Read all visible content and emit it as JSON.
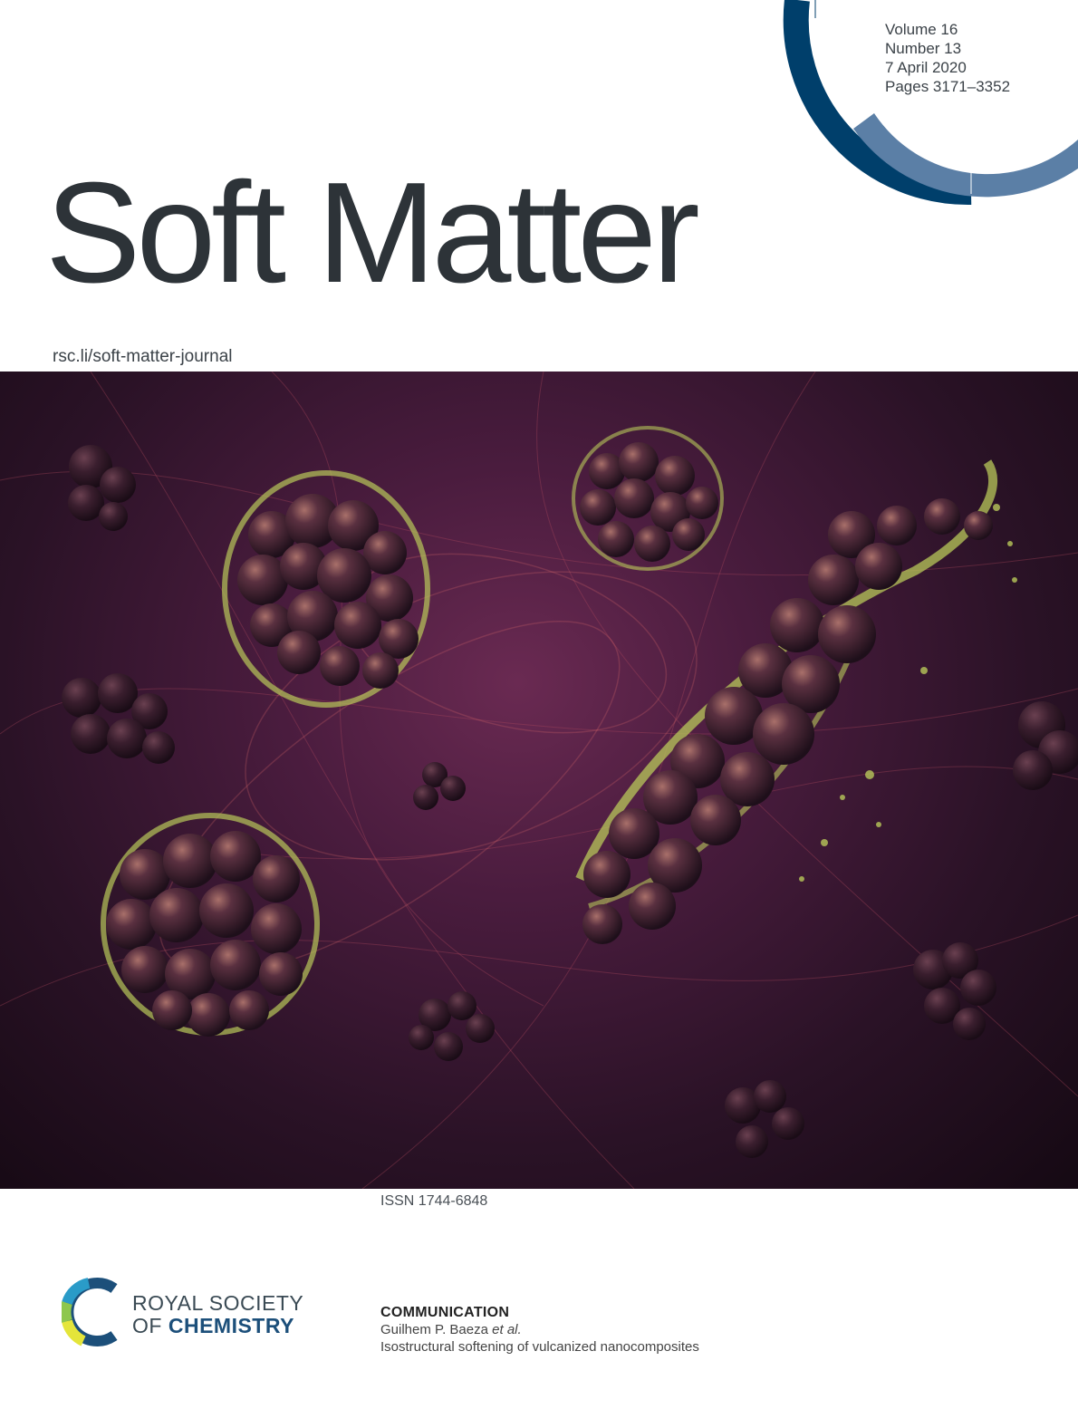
{
  "issue": {
    "volume": "Volume 16",
    "number": "Number 13",
    "date": "7 April 2020",
    "pages": "Pages 3171–3352"
  },
  "journal": {
    "title": "Soft Matter",
    "url": "rsc.li/soft-matter-journal",
    "issn": "ISSN 1744-6848"
  },
  "publisher": {
    "line1": "ROYAL SOCIETY",
    "line2_prefix": "OF ",
    "line2_bold": "CHEMISTRY"
  },
  "article": {
    "type": "COMMUNICATION",
    "authors_main": "Guilhem P. Baeza ",
    "authors_etal": "et al.",
    "title": "Isostructural softening of vulcanized nanocomposites"
  },
  "colors": {
    "title": "#2d3338",
    "arc_dark": "#003f6b",
    "arc_light": "#5b7fa6",
    "art_background": "#2a1226",
    "particle": "#4a2838",
    "gel": "#b8c85a"
  },
  "icons": {
    "logo": "rsc-logo-icon",
    "arc": "issue-arc-icon"
  }
}
